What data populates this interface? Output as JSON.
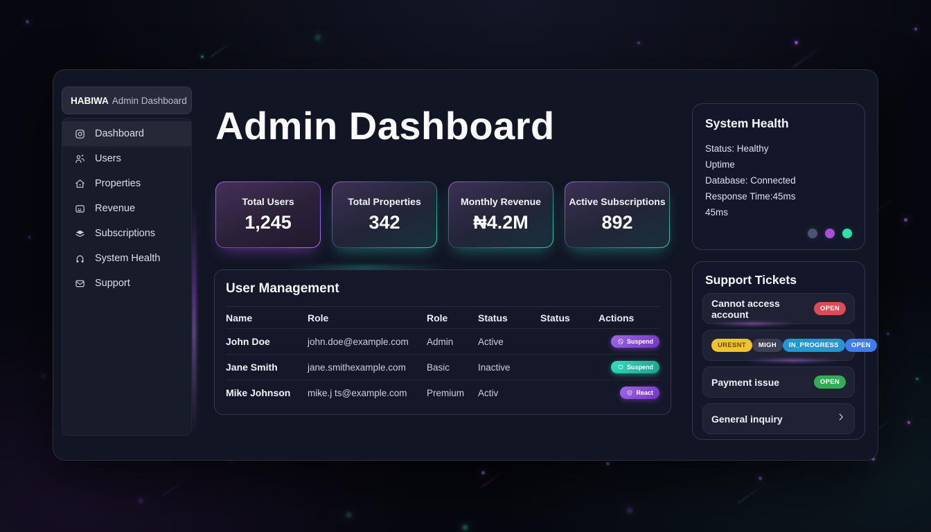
{
  "app": {
    "brand": "HABIWA",
    "brand_suffix": "Admin Dashboard"
  },
  "sidebar": {
    "items": [
      {
        "label": "Dashboard"
      },
      {
        "label": "Users"
      },
      {
        "label": "Properties"
      },
      {
        "label": "Revenue"
      },
      {
        "label": "Subscriptions"
      },
      {
        "label": "System Health"
      },
      {
        "label": "Support"
      }
    ]
  },
  "header": {
    "title": "Admin Dashboard"
  },
  "stats": [
    {
      "label": "Total Users",
      "value": "1,245"
    },
    {
      "label": "Total Properties",
      "value": "342"
    },
    {
      "label": "Monthly Revenue",
      "value": "₦4.2M"
    },
    {
      "label": "Active Subscriptions",
      "value": "892"
    }
  ],
  "user_management": {
    "title": "User Management",
    "columns": [
      "Name",
      "Role",
      "Role",
      "Status",
      "Status",
      "Actions"
    ],
    "rows": [
      {
        "name": "John Doe",
        "email": "john.doe@example.com",
        "role": "Admin",
        "status": "Active",
        "status2": "",
        "action": "Suspend"
      },
      {
        "name": "Jane Smith",
        "email": "jane.smithexample.com",
        "role": "Basic",
        "status": "Inactive",
        "status2": "",
        "action": "Suspend"
      },
      {
        "name": "Mike Johnson",
        "email": "mike.j ts@example.com",
        "role": "Premium",
        "status": "Activ",
        "status2": "",
        "action": "React"
      }
    ]
  },
  "system_health": {
    "title": "System Health",
    "lines": {
      "status": "Status: Healthy",
      "uptime": "Uptime",
      "database": "Database: Connected",
      "response": "Response Time:45ms",
      "response2": "45ms"
    },
    "dot_colors": {
      "0": "#4e5273",
      "1": "#a94fd6",
      "2": "#2fe0a8"
    }
  },
  "support_tickets": {
    "title": "Support Tickets",
    "ticket1": {
      "title": "Cannot access account",
      "badge": "OPEN",
      "badge_color": "#e04a54"
    },
    "ticket2": {
      "badge1": "URESNT",
      "badge1_bg": "#f2c230",
      "badge1_fg": "#6b4a00",
      "badge2": "MIGH",
      "badge2_bg": "#3d4154",
      "badge2_fg": "#ffffff",
      "badge3": "IN_PROGRESS",
      "badge3_bg": "#2396d4",
      "badge3_fg": "#ffffff",
      "badge4": "OPEN",
      "badge4_bg": "#3c7ef0",
      "badge4_fg": "#ffffff"
    },
    "ticket3": {
      "title": "Payment issue",
      "badge": "OPEN",
      "badge_color": "#2fae55"
    },
    "ticket4": {
      "title": "General inquiry"
    }
  },
  "colors": {
    "accent_purple": "#a855f7",
    "accent_teal": "#2dd4bf",
    "open_red": "#e04a54",
    "open_green": "#2fae55"
  }
}
